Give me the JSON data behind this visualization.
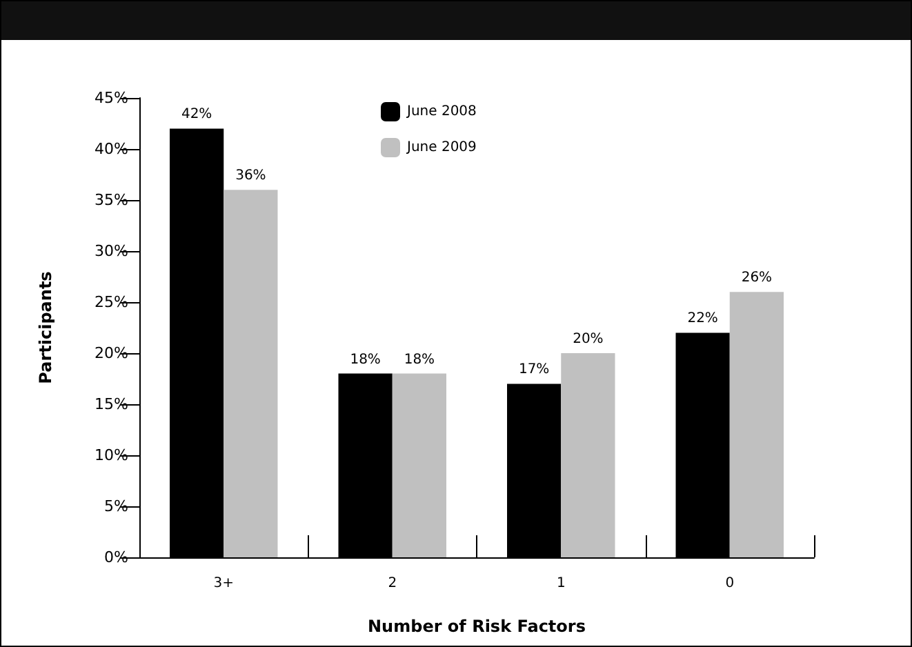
{
  "chart_data": {
    "type": "bar",
    "xlabel": "Number of Risk Factors",
    "ylabel": "Participants",
    "categories": [
      "3+",
      "2",
      "1",
      "0"
    ],
    "series": [
      {
        "name": "June 2008",
        "color": "#000000",
        "values": [
          42,
          18,
          17,
          22
        ],
        "value_labels": [
          "42%",
          "18%",
          "17%",
          "22%"
        ]
      },
      {
        "name": "June 2009",
        "color": "#c0c0c0",
        "values": [
          36,
          18,
          20,
          26
        ],
        "value_labels": [
          "36%",
          "18%",
          "20%",
          "26%"
        ]
      }
    ],
    "ylim": [
      0,
      45
    ],
    "yticks": [
      {
        "value": 0,
        "label": "0%"
      },
      {
        "value": 5,
        "label": "5%"
      },
      {
        "value": 10,
        "label": "10%"
      },
      {
        "value": 15,
        "label": "15%"
      },
      {
        "value": 20,
        "label": "20%"
      },
      {
        "value": 25,
        "label": "25%"
      },
      {
        "value": 30,
        "label": "30%"
      },
      {
        "value": 35,
        "label": "35%"
      },
      {
        "value": 40,
        "label": "40%"
      },
      {
        "value": 45,
        "label": "45%"
      }
    ],
    "grid": false,
    "legend": "top center"
  }
}
